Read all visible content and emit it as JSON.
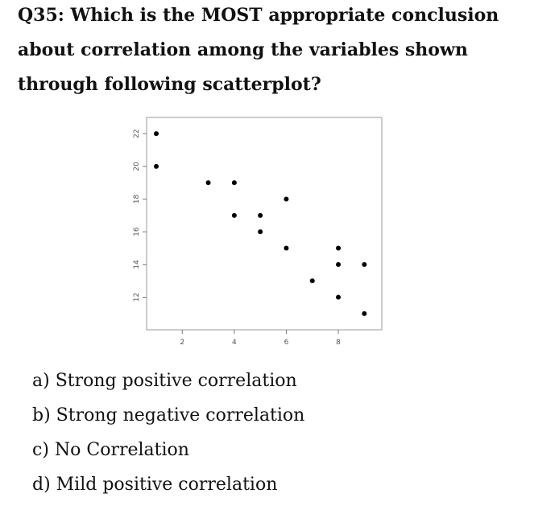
{
  "question": {
    "line1": "Q35: Which is the MOST appropriate conclusion",
    "line2": "about correlation among the variables shown",
    "line3": "through following scatterplot?"
  },
  "chart_data": {
    "type": "scatter",
    "title": "",
    "xlabel": "",
    "ylabel": "",
    "x_ticks": [
      2,
      4,
      6,
      8
    ],
    "y_ticks": [
      12,
      14,
      16,
      18,
      20,
      22
    ],
    "xlim": [
      1.0,
      9.3
    ],
    "ylim": [
      10.5,
      22.5
    ],
    "grid": false,
    "legend": "none",
    "point_color": "#000000",
    "points": [
      {
        "x": 1,
        "y": 22
      },
      {
        "x": 1,
        "y": 20
      },
      {
        "x": 3,
        "y": 19
      },
      {
        "x": 4,
        "y": 19
      },
      {
        "x": 4,
        "y": 17
      },
      {
        "x": 5,
        "y": 17
      },
      {
        "x": 5,
        "y": 16
      },
      {
        "x": 6,
        "y": 18
      },
      {
        "x": 6,
        "y": 15
      },
      {
        "x": 7,
        "y": 13
      },
      {
        "x": 8,
        "y": 15
      },
      {
        "x": 8,
        "y": 14
      },
      {
        "x": 8,
        "y": 12
      },
      {
        "x": 9,
        "y": 14
      },
      {
        "x": 9,
        "y": 11
      }
    ]
  },
  "options": [
    {
      "label": "a) Strong positive correlation"
    },
    {
      "label": "b) Strong negative correlation"
    },
    {
      "label": "c) No Correlation"
    },
    {
      "label": "d) Mild positive correlation"
    }
  ]
}
